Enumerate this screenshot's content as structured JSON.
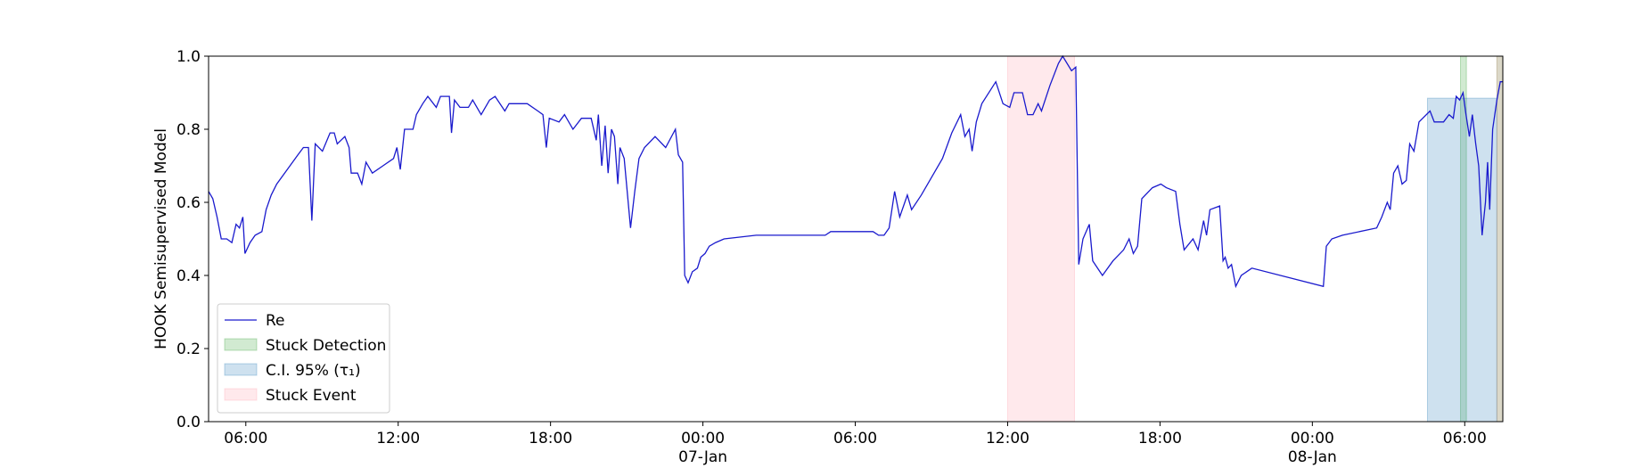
{
  "chart_data": {
    "type": "line",
    "ylabel": "HOOK Semisupervised Model",
    "xlim": [
      "1900-01-06T04:32",
      "1900-01-08T07:30"
    ],
    "ylim": [
      0,
      1
    ],
    "yticks": [
      {
        "value": 0,
        "label": "0.0"
      },
      0.2,
      0.4,
      0.6,
      0.8,
      {
        "value": 1,
        "label": "1.0"
      }
    ],
    "xticks": [
      {
        "value": "1900-01-06T06:00",
        "label": "06:00"
      },
      {
        "value": "1900-01-06T12:00",
        "label": "12:00"
      },
      {
        "value": "1900-01-06T18:00",
        "label": "18:00"
      },
      {
        "value": "1900-01-07T00:00",
        "label": "00:00\n07-Jan\n1900"
      },
      {
        "value": "1900-01-07T06:00",
        "label": "06:00"
      },
      {
        "value": "1900-01-07T12:00",
        "label": "12:00"
      },
      {
        "value": "1900-01-07T18:00",
        "label": "18:00"
      },
      {
        "value": "1900-01-08T00:00",
        "label": "00:00\n08-Jan"
      },
      {
        "value": "1900-01-08T06:00",
        "label": "06:00"
      }
    ],
    "legend": "lower left",
    "x": [
      "1900-01-06T04:32",
      "1900-01-06T04:42",
      "1900-01-06T04:52",
      "1900-01-06T05:02",
      "1900-01-06T05:15",
      "1900-01-06T05:27",
      "1900-01-06T05:37",
      "1900-01-06T05:45",
      "1900-01-06T05:53",
      "1900-01-06T05:58",
      "1900-01-06T06:10",
      "1900-01-06T06:22",
      "1900-01-06T06:38",
      "1900-01-06T06:48",
      "1900-01-06T07:00",
      "1900-01-06T07:13",
      "1900-01-06T07:38",
      "1900-01-06T08:03",
      "1900-01-06T08:16",
      "1900-01-06T08:28",
      "1900-01-06T08:36",
      "1900-01-06T08:44",
      "1900-01-06T09:01",
      "1900-01-06T09:19",
      "1900-01-06T09:29",
      "1900-01-06T09:36",
      "1900-01-06T09:54",
      "1900-01-06T10:04",
      "1900-01-06T10:09",
      "1900-01-06T10:24",
      "1900-01-06T10:34",
      "1900-01-06T10:44",
      "1900-01-06T10:59",
      "1900-01-06T11:24",
      "1900-01-06T11:49",
      "1900-01-06T11:57",
      "1900-01-06T12:05",
      "1900-01-06T12:15",
      "1900-01-06T12:35",
      "1900-01-06T12:43",
      "1900-01-06T12:58",
      "1900-01-06T13:10",
      "1900-01-06T13:30",
      "1900-01-06T13:40",
      "1900-01-06T14:01",
      "1900-01-06T14:06",
      "1900-01-06T14:13",
      "1900-01-06T14:26",
      "1900-01-06T14:46",
      "1900-01-06T14:56",
      "1900-01-06T15:16",
      "1900-01-06T15:36",
      "1900-01-06T15:49",
      "1900-01-06T16:12",
      "1900-01-06T16:22",
      "1900-01-06T16:42",
      "1900-01-06T17:05",
      "1900-01-06T17:30",
      "1900-01-06T17:42",
      "1900-01-06T17:50",
      "1900-01-06T17:57",
      "1900-01-06T18:20",
      "1900-01-06T18:33",
      "1900-01-06T18:53",
      "1900-01-06T19:13",
      "1900-01-06T19:36",
      "1900-01-06T19:48",
      "1900-01-06T19:53",
      "1900-01-06T20:01",
      "1900-01-06T20:09",
      "1900-01-06T20:16",
      "1900-01-06T20:24",
      "1900-01-06T20:31",
      "1900-01-06T20:39",
      "1900-01-06T20:44",
      "1900-01-06T20:54",
      "1900-01-06T21:09",
      "1900-01-06T21:19",
      "1900-01-06T21:29",
      "1900-01-06T21:42",
      "1900-01-06T22:07",
      "1900-01-06T22:32",
      "1900-01-06T22:55",
      "1900-01-06T23:02",
      "1900-01-06T23:12",
      "1900-01-06T23:17",
      "1900-01-06T23:25",
      "1900-01-06T23:35",
      "1900-01-06T23:47",
      "1900-01-06T23:55",
      "1900-01-07T00:05",
      "1900-01-07T00:15",
      "1900-01-07T00:30",
      "1900-01-07T00:50",
      "1900-01-07T02:06",
      "1900-01-07T02:18",
      "1900-01-07T04:49",
      "1900-01-07T05:02",
      "1900-01-07T06:42",
      "1900-01-07T06:55",
      "1900-01-07T07:08",
      "1900-01-07T07:20",
      "1900-01-07T07:33",
      "1900-01-07T07:45",
      "1900-01-07T08:03",
      "1900-01-07T08:13",
      "1900-01-07T08:36",
      "1900-01-07T09:01",
      "1900-01-07T09:26",
      "1900-01-07T09:48",
      "1900-01-07T10:09",
      "1900-01-07T10:19",
      "1900-01-07T10:29",
      "1900-01-07T10:36",
      "1900-01-07T10:46",
      "1900-01-07T10:59",
      "1900-01-07T11:32",
      "1900-01-07T11:49",
      "1900-01-07T12:05",
      "1900-01-07T12:15",
      "1900-01-07T12:35",
      "1900-01-07T12:47",
      "1900-01-07T13:00",
      "1900-01-07T13:12",
      "1900-01-07T13:20",
      "1900-01-07T13:40",
      "1900-01-07T14:00",
      "1900-01-07T14:10",
      "1900-01-07T14:31",
      "1900-01-07T14:41",
      "1900-01-07T14:48",
      "1900-01-07T14:58",
      "1900-01-07T15:13",
      "1900-01-07T15:21",
      "1900-01-07T15:44",
      "1900-01-07T16:09",
      "1900-01-07T16:34",
      "1900-01-07T16:47",
      "1900-01-07T16:57",
      "1900-01-07T17:07",
      "1900-01-07T17:17",
      "1900-01-07T17:42",
      "1900-01-07T18:02",
      "1900-01-07T18:15",
      "1900-01-07T18:37",
      "1900-01-07T18:47",
      "1900-01-07T18:57",
      "1900-01-07T19:18",
      "1900-01-07T19:30",
      "1900-01-07T19:43",
      "1900-01-07T19:50",
      "1900-01-07T19:58",
      "1900-01-07T20:21",
      "1900-01-07T20:29",
      "1900-01-07T20:34",
      "1900-01-07T20:41",
      "1900-01-07T20:49",
      "1900-01-07T20:59",
      "1900-01-07T21:12",
      "1900-01-07T21:37",
      "1900-01-08T00:26",
      "1900-01-08T00:33",
      "1900-01-08T00:46",
      "1900-01-08T01:11",
      "1900-01-08T02:32",
      "1900-01-08T02:44",
      "1900-01-08T02:57",
      "1900-01-08T03:04",
      "1900-01-08T03:12",
      "1900-01-08T03:22",
      "1900-01-08T03:32",
      "1900-01-08T03:42",
      "1900-01-08T03:50",
      "1900-01-08T04:00",
      "1900-01-08T04:12",
      "1900-01-08T04:38",
      "1900-01-08T04:48",
      "1900-01-08T05:10",
      "1900-01-08T05:23",
      "1900-01-08T05:33",
      "1900-01-08T05:40",
      "1900-01-08T05:48",
      "1900-01-08T05:56",
      "1900-01-08T06:03",
      "1900-01-08T06:11",
      "1900-01-08T06:18",
      "1900-01-08T06:26",
      "1900-01-08T06:33",
      "1900-01-08T06:41",
      "1900-01-08T06:49",
      "1900-01-08T06:54",
      "1900-01-08T06:59",
      "1900-01-08T07:06",
      "1900-01-08T07:16",
      "1900-01-08T07:24",
      "1900-01-08T07:30"
    ],
    "series": [
      {
        "name": "Re",
        "color": "#1a1acd",
        "values": [
          0.63,
          0.61,
          0.56,
          0.5,
          0.5,
          0.49,
          0.54,
          0.53,
          0.56,
          0.46,
          0.49,
          0.51,
          0.52,
          0.58,
          0.62,
          0.65,
          0.69,
          0.73,
          0.75,
          0.75,
          0.55,
          0.76,
          0.74,
          0.79,
          0.79,
          0.76,
          0.78,
          0.75,
          0.68,
          0.68,
          0.65,
          0.71,
          0.68,
          0.7,
          0.72,
          0.75,
          0.69,
          0.8,
          0.8,
          0.84,
          0.87,
          0.89,
          0.86,
          0.89,
          0.89,
          0.79,
          0.88,
          0.86,
          0.86,
          0.88,
          0.84,
          0.88,
          0.89,
          0.85,
          0.87,
          0.87,
          0.87,
          0.85,
          0.84,
          0.75,
          0.83,
          0.82,
          0.84,
          0.8,
          0.83,
          0.83,
          0.77,
          0.84,
          0.7,
          0.81,
          0.68,
          0.8,
          0.78,
          0.65,
          0.75,
          0.72,
          0.53,
          0.63,
          0.72,
          0.75,
          0.78,
          0.75,
          0.8,
          0.73,
          0.71,
          0.4,
          0.38,
          0.41,
          0.42,
          0.45,
          0.46,
          0.48,
          0.49,
          0.5,
          0.51,
          0.51,
          0.51,
          0.52,
          0.52,
          0.51,
          0.51,
          0.53,
          0.63,
          0.56,
          0.62,
          0.58,
          0.62,
          0.67,
          0.72,
          0.79,
          0.84,
          0.78,
          0.8,
          0.74,
          0.82,
          0.87,
          0.93,
          0.87,
          0.86,
          0.9,
          0.9,
          0.84,
          0.84,
          0.87,
          0.85,
          0.92,
          0.98,
          1.0,
          0.96,
          0.97,
          0.43,
          0.5,
          0.54,
          0.44,
          0.4,
          0.44,
          0.47,
          0.5,
          0.46,
          0.48,
          0.61,
          0.64,
          0.65,
          0.64,
          0.63,
          0.54,
          0.47,
          0.5,
          0.47,
          0.55,
          0.51,
          0.58,
          0.59,
          0.44,
          0.45,
          0.42,
          0.43,
          0.37,
          0.4,
          0.42,
          0.37,
          0.48,
          0.5,
          0.51,
          0.53,
          0.56,
          0.6,
          0.58,
          0.68,
          0.7,
          0.65,
          0.66,
          0.76,
          0.74,
          0.82,
          0.85,
          0.82,
          0.82,
          0.84,
          0.83,
          0.89,
          0.88,
          0.9,
          0.84,
          0.78,
          0.84,
          0.76,
          0.7,
          0.51,
          0.6,
          0.71,
          0.58,
          0.8,
          0.88,
          0.93,
          0.93
        ]
      }
    ],
    "spans": [
      {
        "name": "Stuck Detection",
        "color": "#2ca02c",
        "intervals": [
          [
            "1900-01-08T05:50",
            "1900-01-08T06:04"
          ],
          [
            "1900-01-08T07:16",
            "1900-01-08T07:30"
          ]
        ]
      },
      {
        "name": "C.I. 95% (τ₁)",
        "color": "#1f77b4",
        "ymax": 0.885,
        "intervals": [
          [
            "1900-01-08T04:32",
            "1900-01-08T07:16"
          ]
        ]
      },
      {
        "name": "Stuck Event",
        "color": "#ff9aa8",
        "intervals": [
          [
            "1900-01-07T12:00",
            "1900-01-07T14:38"
          ],
          [
            "1900-01-08T07:16",
            "1900-01-08T07:30"
          ]
        ]
      }
    ]
  }
}
